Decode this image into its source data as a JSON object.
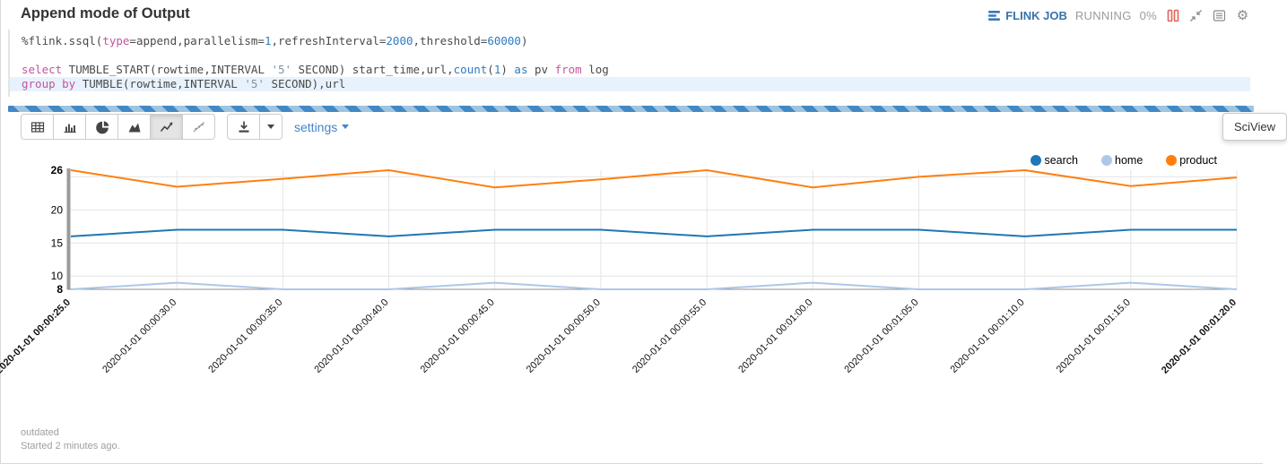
{
  "header": {
    "title": "Append mode of Output",
    "job_label": "FLINK JOB",
    "job_status": "RUNNING",
    "job_progress": "0%"
  },
  "code": {
    "highlighted_line": 3,
    "lines": [
      [
        {
          "t": "%flink.ssql(",
          "c": ""
        },
        {
          "t": "type",
          "c": "kw"
        },
        {
          "t": "=append,parallelism=",
          "c": ""
        },
        {
          "t": "1",
          "c": "num"
        },
        {
          "t": ",refreshInterval=",
          "c": ""
        },
        {
          "t": "2000",
          "c": "num"
        },
        {
          "t": ",threshold=",
          "c": ""
        },
        {
          "t": "60000",
          "c": "num"
        },
        {
          "t": ")",
          "c": ""
        }
      ],
      [],
      [
        {
          "t": "select",
          "c": "kw"
        },
        {
          "t": " TUMBLE_START(rowtime,INTERVAL ",
          "c": ""
        },
        {
          "t": "'5'",
          "c": "str"
        },
        {
          "t": " SECOND) start_time,url,",
          "c": ""
        },
        {
          "t": "count",
          "c": "num"
        },
        {
          "t": "(",
          "c": ""
        },
        {
          "t": "1",
          "c": "num"
        },
        {
          "t": ") ",
          "c": ""
        },
        {
          "t": "as",
          "c": "num"
        },
        {
          "t": " pv ",
          "c": ""
        },
        {
          "t": "from",
          "c": "kw"
        },
        {
          "t": " log",
          "c": ""
        }
      ],
      [
        {
          "t": "group by",
          "c": "kw"
        },
        {
          "t": " TUMBLE(rowtime,INTERVAL ",
          "c": ""
        },
        {
          "t": "'5'",
          "c": "str"
        },
        {
          "t": " SECOND),url",
          "c": ""
        }
      ]
    ]
  },
  "toolbar": {
    "settings_label": "settings",
    "chart_types": [
      "table",
      "bar-chart",
      "pie-chart",
      "area-chart",
      "line-chart",
      "scatter-chart"
    ],
    "active_chart_type": "line-chart"
  },
  "sciview": {
    "label": "SciView"
  },
  "chart_data": {
    "type": "line",
    "x": [
      "2020-01-01 00:00:25.0",
      "2020-01-01 00:00:30.0",
      "2020-01-01 00:00:35.0",
      "2020-01-01 00:00:40.0",
      "2020-01-01 00:00:45.0",
      "2020-01-01 00:00:50.0",
      "2020-01-01 00:00:55.0",
      "2020-01-01 00:01:00.0",
      "2020-01-01 00:01:05.0",
      "2020-01-01 00:01:10.0",
      "2020-01-01 00:01:15.0",
      "2020-01-01 00:01:20.0"
    ],
    "series": [
      {
        "name": "search",
        "color": "#1f77b4",
        "values": [
          16,
          17,
          17,
          16,
          17,
          17,
          16,
          17,
          17,
          16,
          17,
          17
        ]
      },
      {
        "name": "home",
        "color": "#aec7e8",
        "values": [
          8,
          9,
          8,
          8,
          9,
          8,
          8,
          9,
          8,
          8,
          9,
          8
        ]
      },
      {
        "name": "product",
        "color": "#ff7f0e",
        "values": [
          26,
          23.5,
          24.7,
          26,
          23.4,
          24.6,
          26,
          23.4,
          25,
          26,
          23.6,
          24.9
        ]
      }
    ],
    "title": "",
    "xlabel": "",
    "ylabel": "",
    "ylim": [
      8,
      26
    ],
    "yticks": [
      26,
      20,
      15,
      10,
      8
    ],
    "gridlines_y": [
      25,
      20,
      15,
      10
    ],
    "legend_position": "top-right",
    "x_label_rotation": -45
  },
  "footer": {
    "status": "outdated",
    "started": "Started 2 minutes ago."
  }
}
